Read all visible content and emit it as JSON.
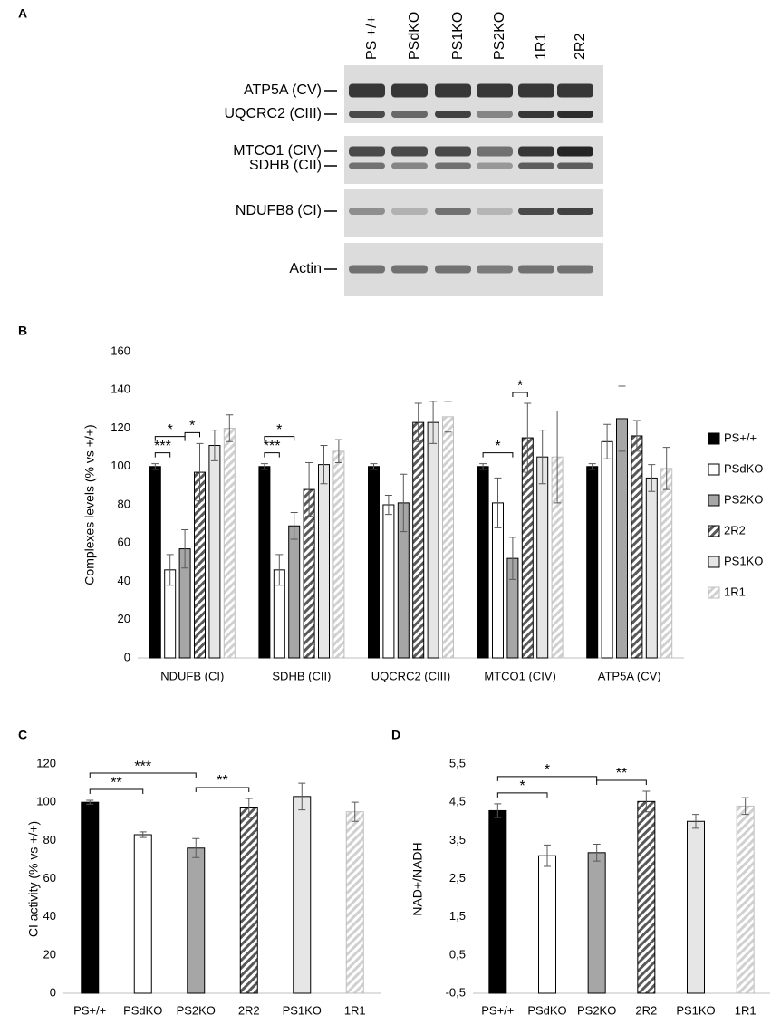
{
  "blot": {
    "panel": "A",
    "lanes": [
      "PS +/+",
      "PSdKO",
      "PS1KO",
      "PS2KO",
      "1R1",
      "2R2"
    ],
    "bands": [
      "ATP5A (CV)",
      "UQCRC2 (CIII)",
      "MTCO1 (CIV)",
      "SDHB (CII)",
      "NDUFB8 (CI)",
      "Actin"
    ]
  },
  "chart_data": [
    {
      "type": "bar",
      "panel": "B",
      "ylabel": "Complexes levels (% vs +/+)",
      "categories": [
        "NDUFB (CI)",
        "SDHB (CII)",
        "UQCRC2 (CIII)",
        "MTCO1 (CIV)",
        "ATP5A (CV)"
      ],
      "series": [
        {
          "name": "PS+/+",
          "color": "#000000",
          "edgecolor": "#000000",
          "hatch": false,
          "values": [
            100,
            100,
            100,
            100,
            100
          ],
          "errors": [
            1.5,
            1.5,
            1.5,
            1.5,
            1.5
          ]
        },
        {
          "name": "PSdKO",
          "color": "#ffffff",
          "edgecolor": "#000000",
          "hatch": false,
          "values": [
            46,
            46,
            80,
            81,
            113
          ],
          "errors": [
            8,
            8,
            5,
            13,
            9
          ]
        },
        {
          "name": "PS2KO",
          "color": "#a6a6a6",
          "edgecolor": "#000000",
          "hatch": false,
          "values": [
            57,
            69,
            81,
            52,
            125
          ],
          "errors": [
            10,
            7,
            15,
            11,
            17
          ]
        },
        {
          "name": "2R2",
          "color": "#595959",
          "edgecolor": "#000000",
          "hatch": true,
          "values": [
            97,
            88,
            123,
            115,
            116
          ],
          "errors": [
            15,
            14,
            10,
            18,
            8
          ]
        },
        {
          "name": "PS1KO",
          "color": "#e6e6e6",
          "edgecolor": "#000000",
          "hatch": false,
          "values": [
            111,
            101,
            123,
            105,
            94
          ],
          "errors": [
            8,
            10,
            11,
            14,
            7
          ]
        },
        {
          "name": "1R1",
          "color": "#d0d0d0",
          "edgecolor": "#bfbfbf",
          "hatch": true,
          "values": [
            120,
            108,
            126,
            105,
            99
          ],
          "errors": [
            7,
            6,
            8,
            24,
            11
          ]
        }
      ],
      "annotations": [
        {
          "category": 0,
          "from": 0,
          "to": 1,
          "label": "***"
        },
        {
          "category": 0,
          "from": 0,
          "to": 2,
          "label": "*"
        },
        {
          "category": 0,
          "from": 2,
          "to": 3,
          "label": "*"
        },
        {
          "category": 1,
          "from": 0,
          "to": 1,
          "label": "***"
        },
        {
          "category": 1,
          "from": 0,
          "to": 2,
          "label": "*"
        },
        {
          "category": 3,
          "from": 0,
          "to": 2,
          "label": "*"
        },
        {
          "category": 3,
          "from": 2,
          "to": 3,
          "label": "*"
        }
      ],
      "ylim": [
        0,
        160
      ],
      "yticks": [
        0,
        20,
        40,
        60,
        80,
        100,
        120,
        140,
        160
      ],
      "grid": false,
      "legend": "right"
    },
    {
      "type": "bar",
      "panel": "C",
      "ylabel": "CI activity (% vs +/+)",
      "categories": [
        "PS+/+",
        "PSdKO",
        "PS2KO",
        "2R2",
        "PS1KO",
        "1R1"
      ],
      "values": [
        100,
        83,
        76,
        97,
        103,
        95
      ],
      "errors": [
        1,
        1.5,
        5,
        5,
        7,
        5
      ],
      "colors": [
        "#000000",
        "#ffffff",
        "#a6a6a6",
        "#595959",
        "#e6e6e6",
        "#d0d0d0"
      ],
      "edgecolors": [
        "#000000",
        "#000000",
        "#000000",
        "#000000",
        "#000000",
        "#bfbfbf"
      ],
      "hatch": [
        false,
        false,
        false,
        true,
        false,
        true
      ],
      "annotations": [
        {
          "from": 0,
          "to": 1,
          "label": "**"
        },
        {
          "from": 0,
          "to": 2,
          "label": "***"
        },
        {
          "from": 2,
          "to": 3,
          "label": "**"
        }
      ],
      "ylim": [
        0,
        120
      ],
      "yticks": [
        0,
        20,
        40,
        60,
        80,
        100,
        120
      ],
      "grid": false
    },
    {
      "type": "bar",
      "panel": "D",
      "ylabel": "NAD+/NADH",
      "categories": [
        "PS+/+",
        "PSdKO",
        "PS2KO",
        "2R2",
        "PS1KO",
        "1R1"
      ],
      "values": [
        4.28,
        3.1,
        3.18,
        4.52,
        4.0,
        4.4
      ],
      "errors": [
        0.18,
        0.28,
        0.22,
        0.27,
        0.18,
        0.22
      ],
      "colors": [
        "#000000",
        "#ffffff",
        "#a6a6a6",
        "#595959",
        "#e6e6e6",
        "#d0d0d0"
      ],
      "edgecolors": [
        "#000000",
        "#000000",
        "#000000",
        "#000000",
        "#000000",
        "#bfbfbf"
      ],
      "hatch": [
        false,
        false,
        false,
        true,
        false,
        true
      ],
      "annotations": [
        {
          "from": 0,
          "to": 1,
          "label": "*"
        },
        {
          "from": 0,
          "to": 2,
          "label": "*"
        },
        {
          "from": 2,
          "to": 3,
          "label": "**"
        }
      ],
      "ylim": [
        -0.5,
        5.5
      ],
      "yticks": [
        {
          "value": -0.5,
          "label": "-0,5"
        },
        {
          "value": 0.5,
          "label": "0,5"
        },
        {
          "value": 1.5,
          "label": "1,5"
        },
        {
          "value": 2.5,
          "label": "2,5"
        },
        {
          "value": 3.5,
          "label": "3,5"
        },
        {
          "value": 4.5,
          "label": "4,5"
        },
        {
          "value": 5.5,
          "label": "5,5"
        }
      ],
      "grid": false
    }
  ]
}
